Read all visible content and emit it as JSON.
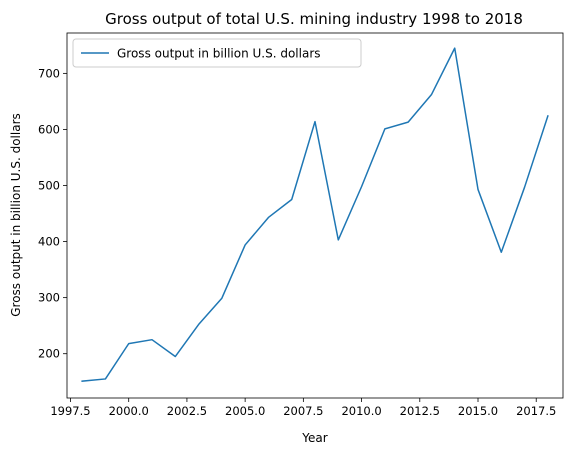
{
  "chart_data": {
    "type": "line",
    "title": "Gross output of total U.S. mining industry 1998 to 2018",
    "xlabel": "Year",
    "ylabel": "Gross output in billion U.S. dollars",
    "xlim": [
      1997.35,
      2018.65
    ],
    "ylim": [
      121,
      772
    ],
    "xticks": [
      1997.5,
      2000.0,
      2002.5,
      2005.0,
      2007.5,
      2010.0,
      2012.5,
      2015.0,
      2017.5
    ],
    "xtick_labels": [
      "1997.5",
      "2000.0",
      "2002.5",
      "2005.0",
      "2007.5",
      "2010.0",
      "2012.5",
      "2015.0",
      "2017.5"
    ],
    "yticks": [
      200,
      300,
      400,
      500,
      600,
      700
    ],
    "ytick_labels": [
      "200",
      "300",
      "400",
      "500",
      "600",
      "700"
    ],
    "grid": false,
    "legend_position": "top-left",
    "series": [
      {
        "name": "Gross output in billion U.S. dollars",
        "color": "#1f77b4",
        "x": [
          1998,
          1999,
          2000,
          2001,
          2002,
          2003,
          2004,
          2005,
          2006,
          2007,
          2008,
          2009,
          2010,
          2011,
          2012,
          2013,
          2014,
          2015,
          2016,
          2017,
          2018
        ],
        "values": [
          151,
          155,
          218,
          225,
          195,
          252,
          299,
          394,
          443,
          475,
          614,
          403,
          498,
          601,
          613,
          662,
          745,
          493,
          381,
          497,
          624
        ]
      }
    ]
  }
}
